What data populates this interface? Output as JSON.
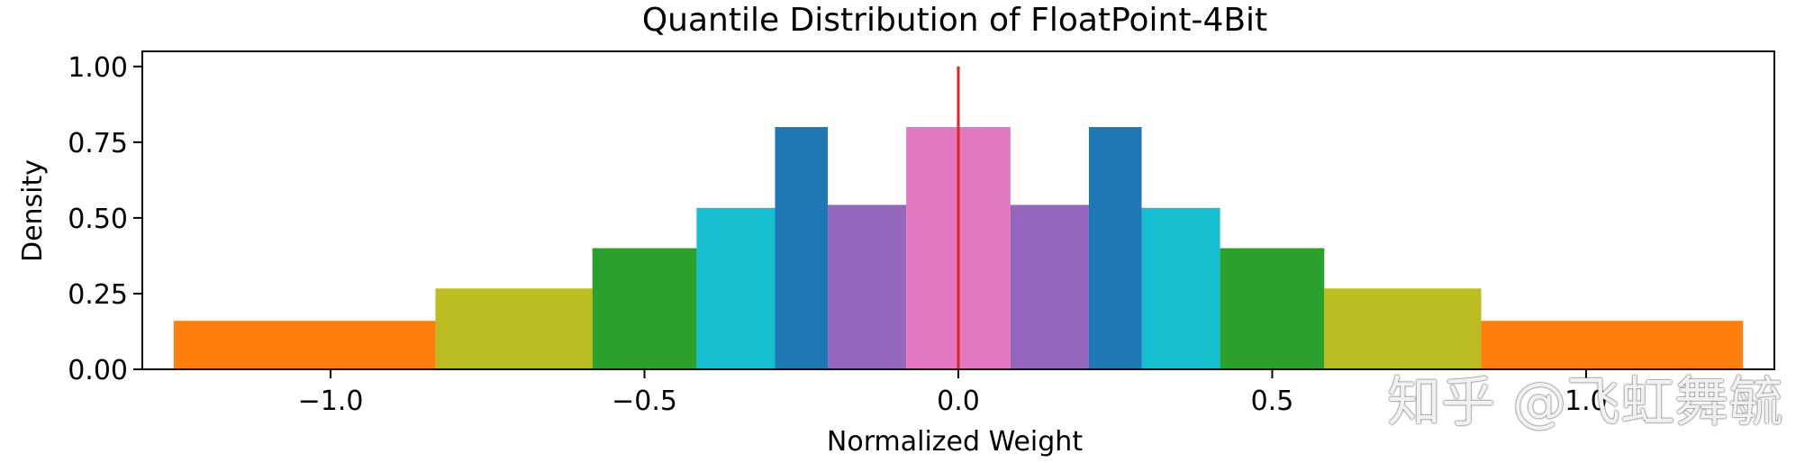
{
  "watermark": "知乎 @飞虹舞毓",
  "chart_data": {
    "type": "bar",
    "title": "Quantile Distribution of FloatPoint-4Bit",
    "xlabel": "Normalized Weight",
    "ylabel": "Density",
    "xlim": [
      -1.3,
      1.3
    ],
    "ylim": [
      0,
      1.05
    ],
    "xticks": [
      -1.0,
      -0.5,
      0.0,
      0.5,
      1.0
    ],
    "xtick_labels": [
      "−1.0",
      "−0.5",
      "0.0",
      "0.5",
      "1.0"
    ],
    "yticks": [
      0.0,
      0.25,
      0.5,
      0.75,
      1.0
    ],
    "ytick_labels": [
      "0.00",
      "0.25",
      "0.50",
      "0.75",
      "1.00"
    ],
    "bins": [
      {
        "x0": -1.25,
        "x1": -0.833,
        "density": 0.16,
        "color": "#ff7f0e"
      },
      {
        "x0": -0.833,
        "x1": -0.583,
        "density": 0.267,
        "color": "#bcbd22"
      },
      {
        "x0": -0.583,
        "x1": -0.417,
        "density": 0.4,
        "color": "#2ca02c"
      },
      {
        "x0": -0.417,
        "x1": -0.292,
        "density": 0.533,
        "color": "#17becf"
      },
      {
        "x0": -0.292,
        "x1": -0.208,
        "density": 0.8,
        "color": "#1f77b4"
      },
      {
        "x0": -0.208,
        "x1": -0.083,
        "density": 0.543,
        "color": "#9467bd"
      },
      {
        "x0": -0.083,
        "x1": 0.083,
        "density": 0.8,
        "color": "#e377c2"
      },
      {
        "x0": 0.083,
        "x1": 0.208,
        "density": 0.543,
        "color": "#9467bd"
      },
      {
        "x0": 0.208,
        "x1": 0.292,
        "density": 0.8,
        "color": "#1f77b4"
      },
      {
        "x0": 0.292,
        "x1": 0.417,
        "density": 0.533,
        "color": "#17becf"
      },
      {
        "x0": 0.417,
        "x1": 0.583,
        "density": 0.4,
        "color": "#2ca02c"
      },
      {
        "x0": 0.583,
        "x1": 0.833,
        "density": 0.267,
        "color": "#bcbd22"
      },
      {
        "x0": 0.833,
        "x1": 1.25,
        "density": 0.16,
        "color": "#ff7f0e"
      }
    ],
    "vline": {
      "x": 0.0,
      "y0": 0.0,
      "y1": 1.0,
      "color": "#d62728"
    }
  }
}
